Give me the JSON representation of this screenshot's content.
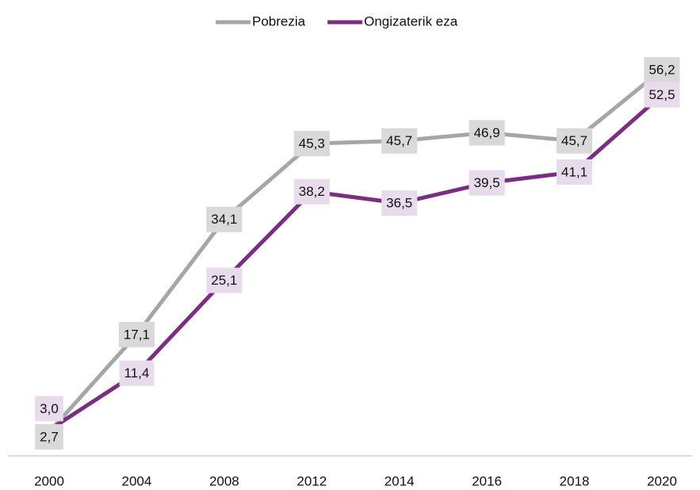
{
  "chart_data": {
    "type": "line",
    "categories": [
      "2000",
      "2004",
      "2008",
      "2012",
      "2014",
      "2016",
      "2018",
      "2020"
    ],
    "series": [
      {
        "name": "Pobrezia",
        "color": "#a6a6a6",
        "label_fill": "#d9d9d9",
        "values": [
          2.7,
          17.1,
          34.1,
          45.3,
          45.7,
          46.9,
          45.7,
          56.2
        ],
        "value_labels": [
          "2,7",
          "17,1",
          "34,1",
          "45,3",
          "45,7",
          "46,9",
          "45,7",
          "56,2"
        ]
      },
      {
        "name": "Ongizaterik eza",
        "color": "#7b2c83",
        "label_fill": "#e7dbec",
        "values": [
          3.0,
          11.4,
          25.1,
          38.2,
          36.5,
          39.5,
          41.1,
          52.5
        ],
        "value_labels": [
          "3,0",
          "11,4",
          "25,1",
          "38,2",
          "36,5",
          "39,5",
          "41,1",
          "52,5"
        ]
      }
    ],
    "legend": "top"
  }
}
